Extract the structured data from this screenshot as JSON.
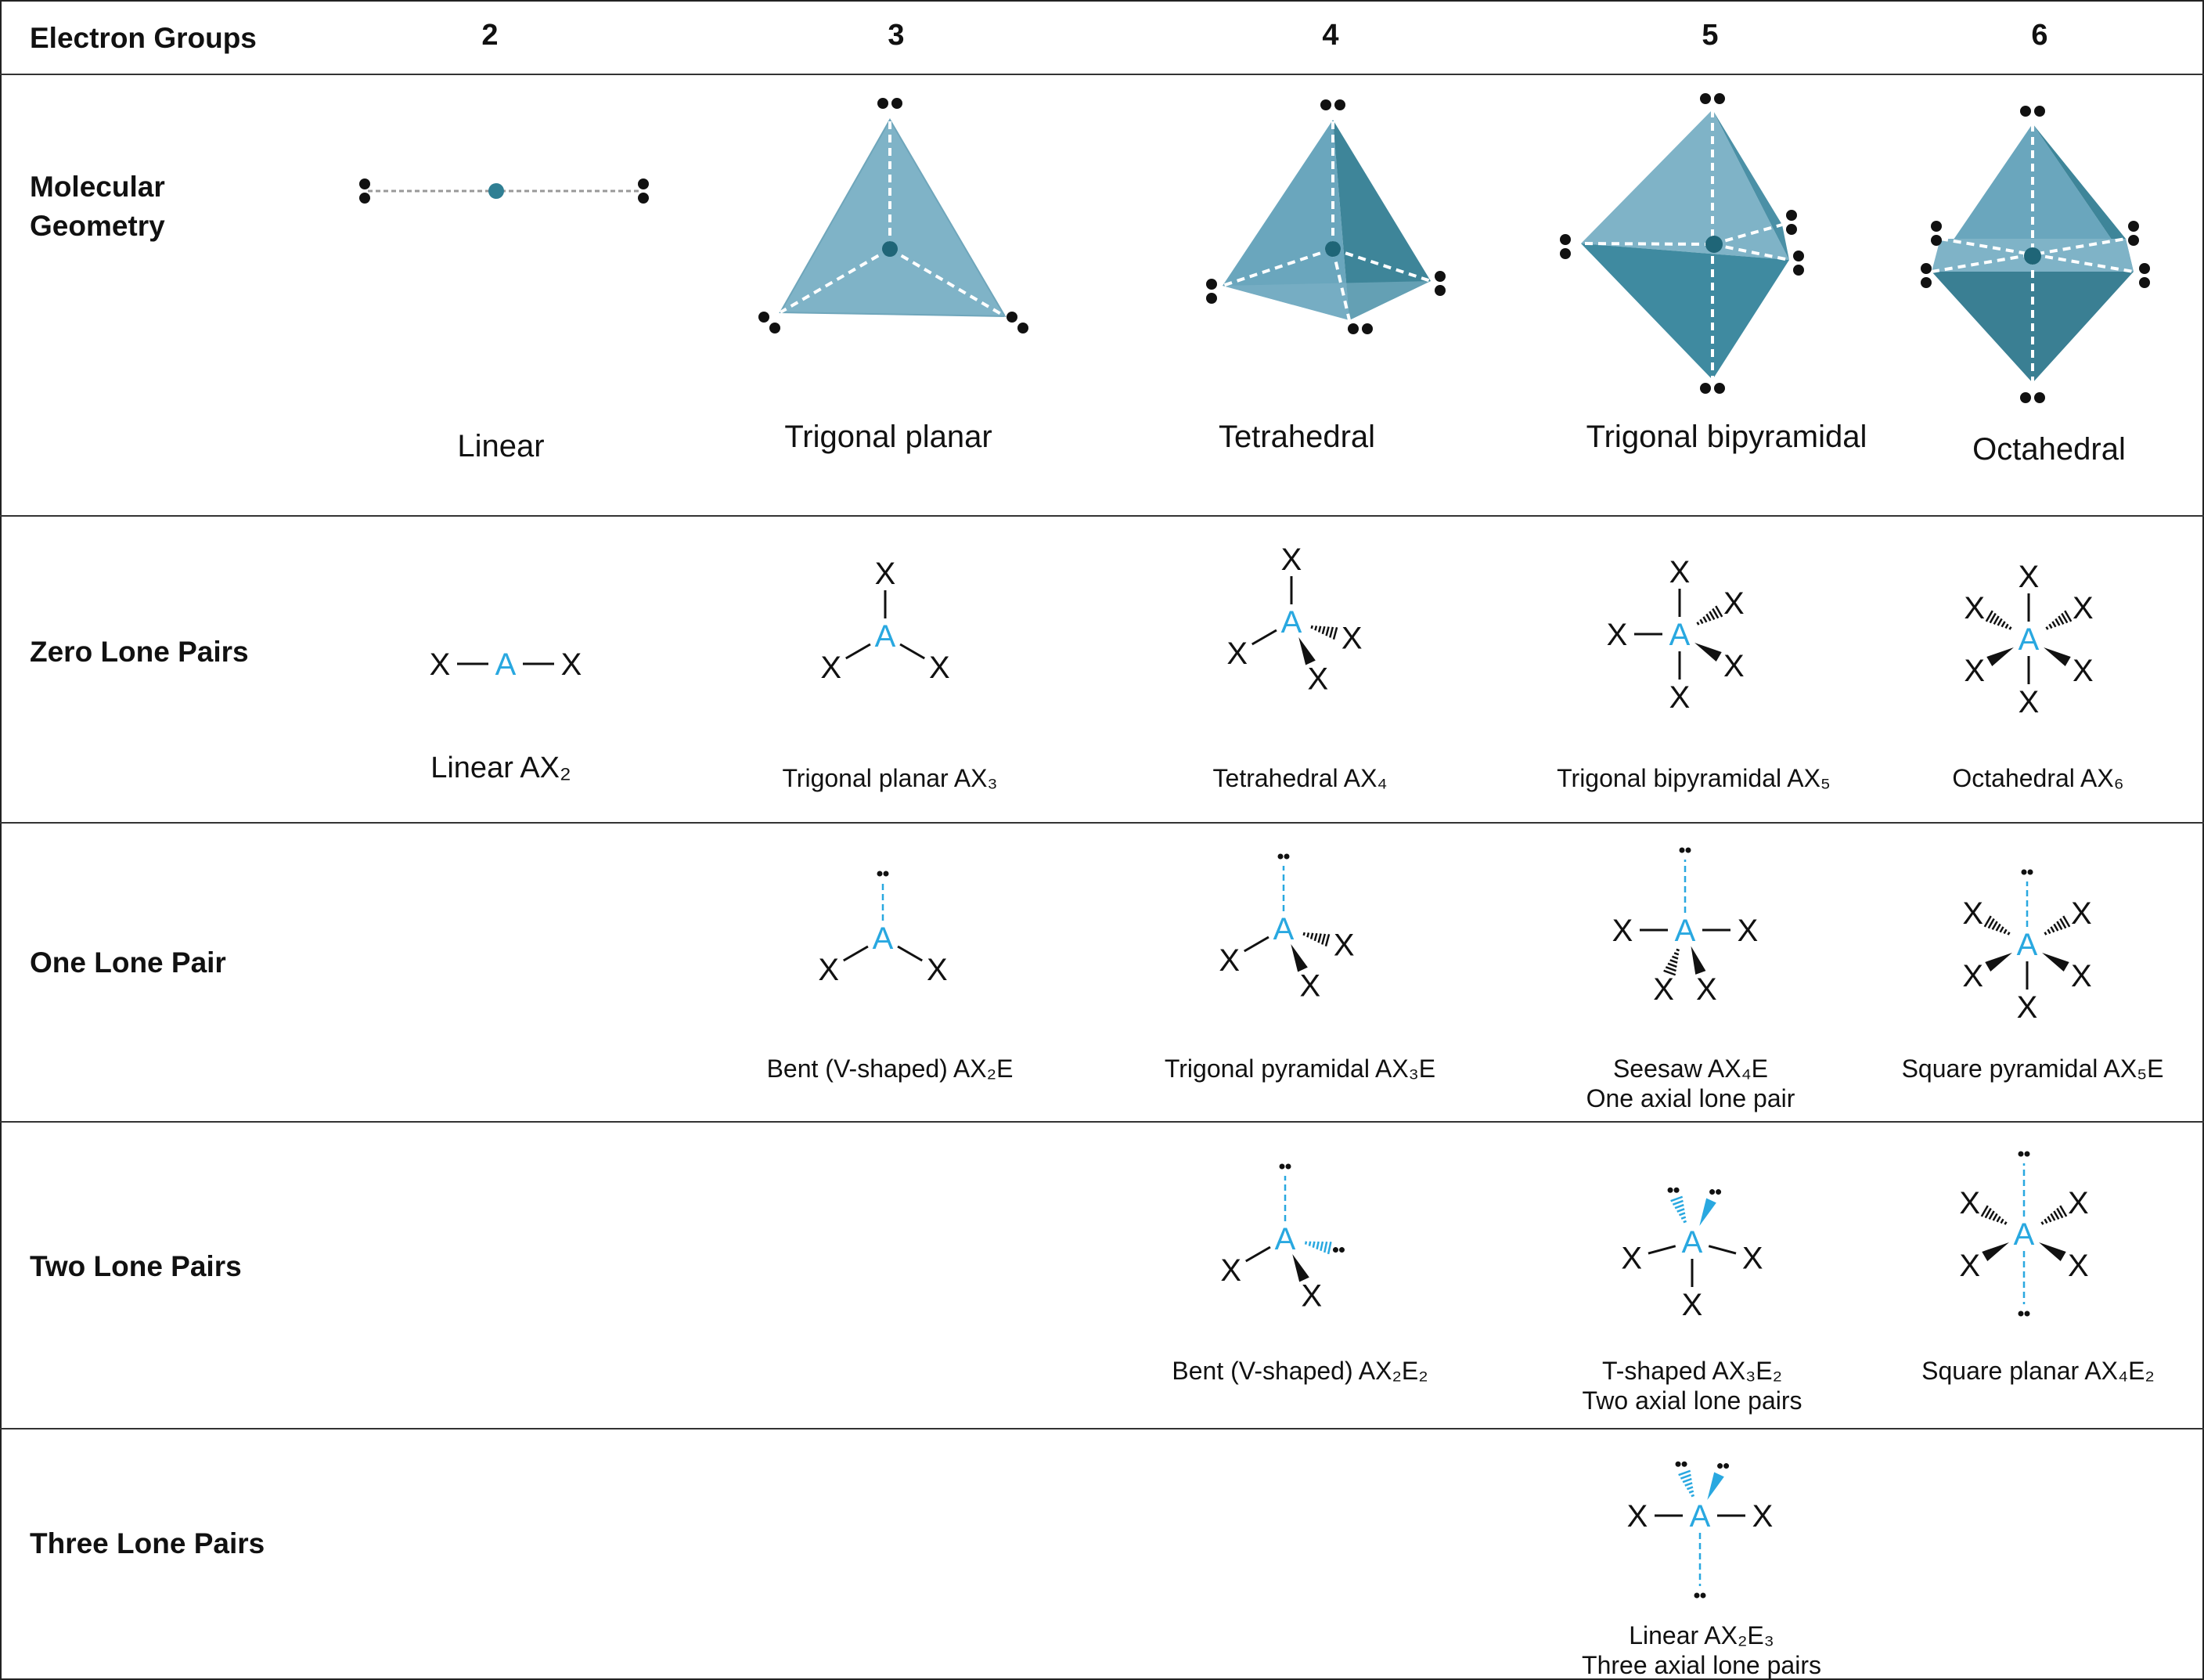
{
  "header": {
    "title": "Electron Groups",
    "columns": [
      "2",
      "3",
      "4",
      "5",
      "6"
    ]
  },
  "rows": {
    "geometry": "Molecular Geometry",
    "geometry_line1": "Molecular",
    "geometry_line2": "Geometry",
    "zero": "Zero Lone Pairs",
    "one": "One Lone Pair",
    "two": "Two Lone Pairs",
    "three": "Three Lone Pairs"
  },
  "geometry_names": [
    "Linear",
    "Trigonal planar",
    "Tetrahedral",
    "Trigonal bipyramidal",
    "Octahedral"
  ],
  "zero_lone_pairs": [
    "Linear AX₂",
    "Trigonal planar AX₃",
    "Tetrahedral AX₄",
    "Trigonal bipyramidal AX₅",
    "Octahedral AX₆"
  ],
  "one_lone_pair": [
    {
      "name": "Bent (V-shaped) AX₂E"
    },
    {
      "name": "Trigonal pyramidal AX₃E"
    },
    {
      "name": "Seesaw AX₄E",
      "note": "One axial lone pair"
    },
    {
      "name": "Square pyramidal AX₅E"
    }
  ],
  "two_lone_pairs": [
    {
      "name": "Bent (V-shaped) AX₂E₂"
    },
    {
      "name": "T-shaped AX₃E₂",
      "note": "Two axial lone pairs"
    },
    {
      "name": "Square planar AX₄E₂"
    }
  ],
  "three_lone_pairs": [
    {
      "name": "Linear AX₂E₃",
      "note": "Three axial lone pairs"
    }
  ],
  "symbols": {
    "central": "A",
    "ligand": "X"
  },
  "colors": {
    "central_atom": "#29a8e0",
    "polyhedron_light": "#7fb3c7",
    "polyhedron_dark": "#3f8aa0",
    "border": "#222222"
  }
}
